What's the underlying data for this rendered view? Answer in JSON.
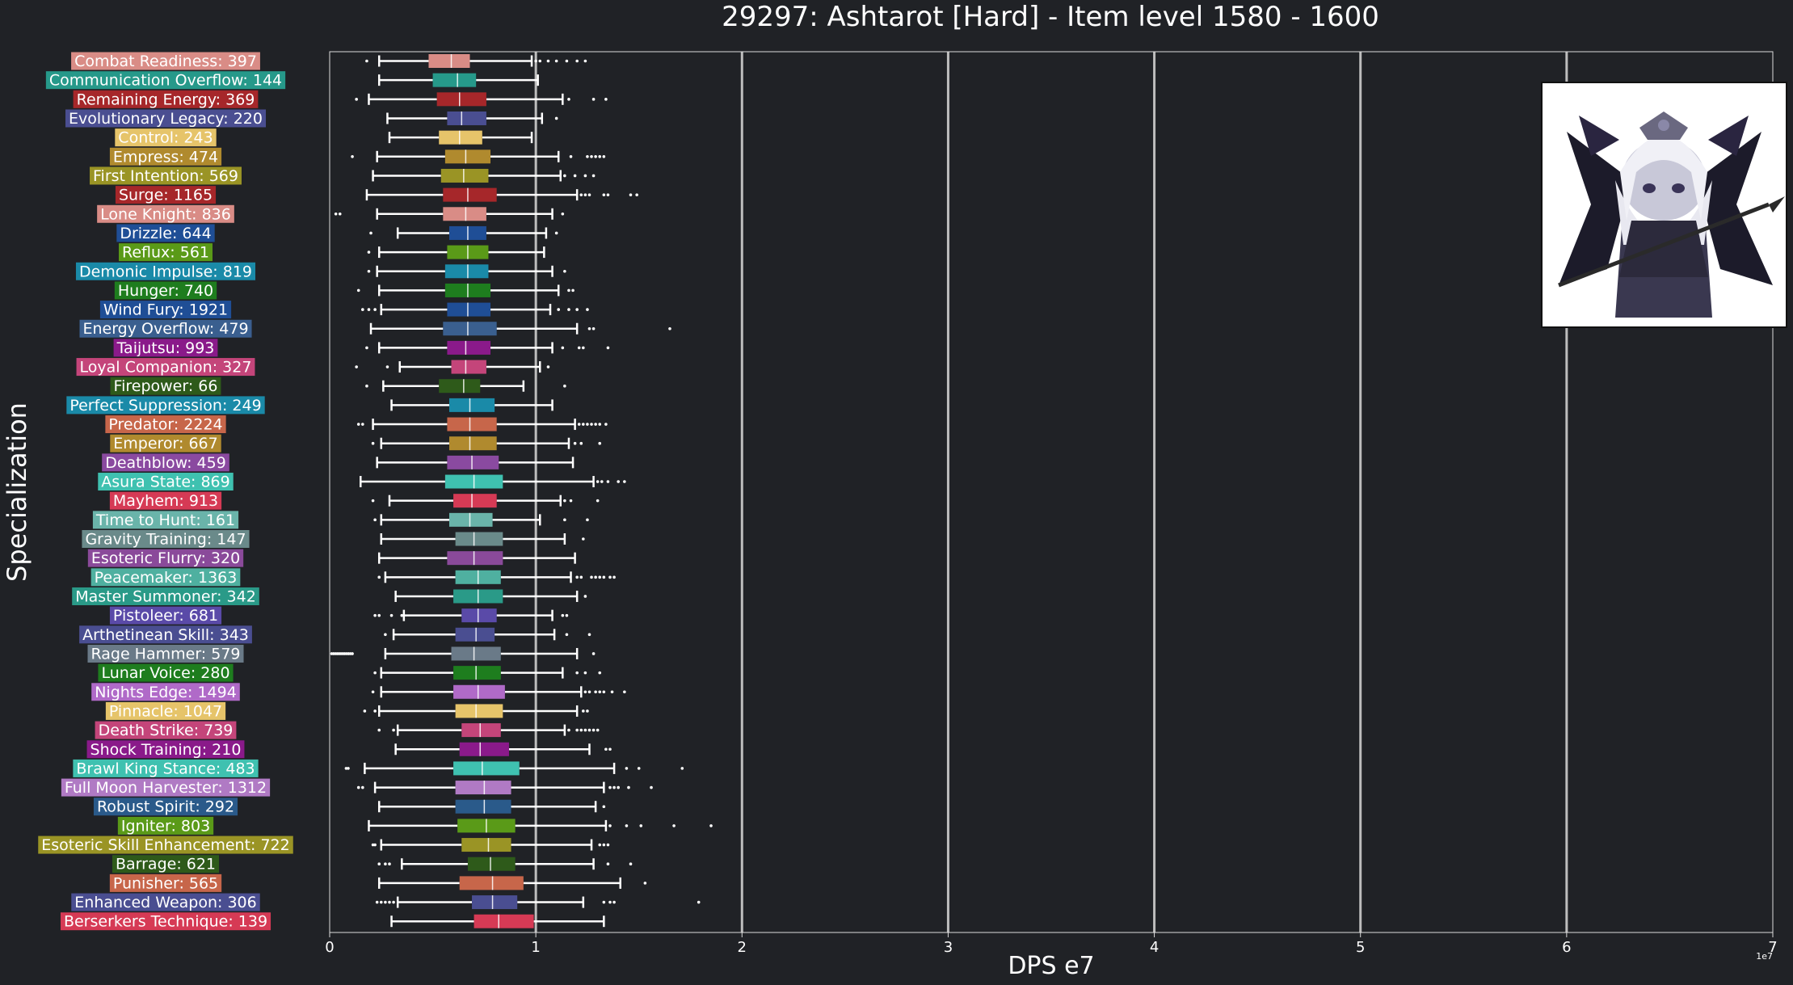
{
  "chart_data": {
    "type": "box",
    "title": "29297: Ashtarot [Hard] - Item level 1580 - 1600",
    "xlabel": "DPS e7",
    "ylabel": "Specialization",
    "x_ticks": [
      "0",
      "1",
      "2",
      "3",
      "4",
      "5",
      "6",
      "7"
    ],
    "x_tick_values": [
      0,
      1,
      2,
      3,
      4,
      5,
      6,
      7
    ],
    "x_offset_label": "1e7",
    "xlim": [
      0,
      7
    ],
    "grid": "vertical",
    "series": [
      {
        "label": "Combat Readiness: 397",
        "color": "#d98c86",
        "wl": 0.24,
        "q1": 0.48,
        "med": 0.59,
        "q3": 0.68,
        "wh": 0.98,
        "fl": [
          0.18,
          1.0,
          1.02,
          1.06,
          1.1,
          1.15,
          1.2,
          1.24
        ]
      },
      {
        "label": "Communication Overflow: 144",
        "color": "#26998a",
        "wl": 0.24,
        "q1": 0.5,
        "med": 0.62,
        "q3": 0.71,
        "wh": 1.01,
        "fl": []
      },
      {
        "label": "Remaining Energy: 369",
        "color": "#a6272a",
        "wl": 0.19,
        "q1": 0.52,
        "med": 0.63,
        "q3": 0.76,
        "wh": 1.13,
        "fl": [
          0.13,
          1.16,
          1.28,
          1.34
        ]
      },
      {
        "label": "Evolutionary Legacy: 220",
        "color": "#4a4e91",
        "wl": 0.28,
        "q1": 0.57,
        "med": 0.64,
        "q3": 0.76,
        "wh": 1.03,
        "fl": [
          1.1
        ]
      },
      {
        "label": "Control: 243",
        "color": "#e6c46a",
        "wl": 0.29,
        "q1": 0.53,
        "med": 0.63,
        "q3": 0.74,
        "wh": 0.98,
        "fl": []
      },
      {
        "label": "Empress: 474",
        "color": "#b08a2e",
        "wl": 0.23,
        "q1": 0.56,
        "med": 0.66,
        "q3": 0.78,
        "wh": 1.11,
        "fl": [
          0.11,
          1.17,
          1.25,
          1.27,
          1.29,
          1.31,
          1.33
        ]
      },
      {
        "label": "First Intention: 569",
        "color": "#9a9425",
        "wl": 0.21,
        "q1": 0.54,
        "med": 0.65,
        "q3": 0.77,
        "wh": 1.12,
        "fl": [
          1.14,
          1.19,
          1.24,
          1.28
        ]
      },
      {
        "label": "Surge: 1165",
        "color": "#a6272a",
        "wl": 0.18,
        "q1": 0.55,
        "med": 0.67,
        "q3": 0.81,
        "wh": 1.2,
        "fl": [
          1.22,
          1.24,
          1.26,
          1.33,
          1.35,
          1.46,
          1.49
        ]
      },
      {
        "label": "Lone Knight: 836",
        "color": "#d98c86",
        "wl": 0.23,
        "q1": 0.55,
        "med": 0.66,
        "q3": 0.76,
        "wh": 1.08,
        "fl": [
          0.03,
          0.05,
          1.13
        ]
      },
      {
        "label": "Drizzle: 644",
        "color": "#1f4e96",
        "wl": 0.33,
        "q1": 0.58,
        "med": 0.67,
        "q3": 0.76,
        "wh": 1.05,
        "fl": [
          0.2,
          1.1
        ]
      },
      {
        "label": "Reflux: 561",
        "color": "#5a9a18",
        "wl": 0.24,
        "q1": 0.57,
        "med": 0.67,
        "q3": 0.77,
        "wh": 1.04,
        "fl": [
          0.19
        ]
      },
      {
        "label": "Demonic Impulse: 819",
        "color": "#1a8aa8",
        "wl": 0.23,
        "q1": 0.56,
        "med": 0.67,
        "q3": 0.77,
        "wh": 1.08,
        "fl": [
          0.19,
          1.14
        ]
      },
      {
        "label": "Hunger: 740",
        "color": "#1e7d1e",
        "wl": 0.24,
        "q1": 0.56,
        "med": 0.67,
        "q3": 0.78,
        "wh": 1.11,
        "fl": [
          0.14,
          1.16,
          1.18
        ]
      },
      {
        "label": "Wind Fury: 1921",
        "color": "#1f4e96",
        "wl": 0.25,
        "q1": 0.57,
        "med": 0.67,
        "q3": 0.78,
        "wh": 1.07,
        "fl": [
          0.16,
          0.19,
          0.22,
          1.11,
          1.16,
          1.2,
          1.25
        ]
      },
      {
        "label": "Energy Overflow: 479",
        "color": "#3a5f8f",
        "wl": 0.2,
        "q1": 0.55,
        "med": 0.67,
        "q3": 0.81,
        "wh": 1.2,
        "fl": [
          1.26,
          1.28,
          1.65
        ]
      },
      {
        "label": "Taijutsu: 993",
        "color": "#8a1a8a",
        "wl": 0.24,
        "q1": 0.57,
        "med": 0.66,
        "q3": 0.78,
        "wh": 1.08,
        "fl": [
          0.18,
          1.13,
          1.21,
          1.23,
          1.35
        ]
      },
      {
        "label": "Loyal Companion: 327",
        "color": "#c4457a",
        "wl": 0.34,
        "q1": 0.59,
        "med": 0.66,
        "q3": 0.76,
        "wh": 1.02,
        "fl": [
          0.13,
          0.28,
          1.06
        ]
      },
      {
        "label": "Firepower: 66",
        "color": "#2e5a1a",
        "wl": 0.26,
        "q1": 0.53,
        "med": 0.65,
        "q3": 0.73,
        "wh": 0.94,
        "fl": [
          0.18,
          1.14
        ]
      },
      {
        "label": "Perfect Suppression: 249",
        "color": "#1a8aa8",
        "wl": 0.3,
        "q1": 0.58,
        "med": 0.68,
        "q3": 0.8,
        "wh": 1.08,
        "fl": []
      },
      {
        "label": "Predator: 2224",
        "color": "#c7664a",
        "wl": 0.21,
        "q1": 0.57,
        "med": 0.68,
        "q3": 0.81,
        "wh": 1.19,
        "fl": [
          0.14,
          0.16,
          1.21,
          1.23,
          1.25,
          1.27,
          1.29,
          1.31,
          1.34
        ]
      },
      {
        "label": "Emperor: 667",
        "color": "#b08a2e",
        "wl": 0.25,
        "q1": 0.58,
        "med": 0.68,
        "q3": 0.81,
        "wh": 1.16,
        "fl": [
          0.21,
          1.19,
          1.22,
          1.31
        ]
      },
      {
        "label": "Deathblow: 459",
        "color": "#8a4aa0",
        "wl": 0.23,
        "q1": 0.57,
        "med": 0.69,
        "q3": 0.82,
        "wh": 1.18,
        "fl": []
      },
      {
        "label": "Asura State: 869",
        "color": "#3fc1b0",
        "wl": 0.15,
        "q1": 0.56,
        "med": 0.7,
        "q3": 0.84,
        "wh": 1.28,
        "fl": [
          1.3,
          1.32,
          1.35,
          1.4,
          1.43
        ]
      },
      {
        "label": "Mayhem: 913",
        "color": "#d63a55",
        "wl": 0.29,
        "q1": 0.6,
        "med": 0.69,
        "q3": 0.81,
        "wh": 1.12,
        "fl": [
          0.21,
          1.14,
          1.17,
          1.3
        ]
      },
      {
        "label": "Time to Hunt: 161",
        "color": "#6ab4aa",
        "wl": 0.25,
        "q1": 0.58,
        "med": 0.68,
        "q3": 0.79,
        "wh": 1.02,
        "fl": [
          0.22,
          1.14,
          1.25
        ]
      },
      {
        "label": "Gravity Training: 147",
        "color": "#6a8a8a",
        "wl": 0.25,
        "q1": 0.61,
        "med": 0.7,
        "q3": 0.84,
        "wh": 1.14,
        "fl": [
          1.23
        ]
      },
      {
        "label": "Esoteric Flurry: 320",
        "color": "#8a4a9a",
        "wl": 0.24,
        "q1": 0.57,
        "med": 0.7,
        "q3": 0.84,
        "wh": 1.19,
        "fl": []
      },
      {
        "label": "Peacemaker: 1363",
        "color": "#4fb0a0",
        "wl": 0.27,
        "q1": 0.61,
        "med": 0.72,
        "q3": 0.83,
        "wh": 1.17,
        "fl": [
          0.24,
          1.2,
          1.22,
          1.27,
          1.29,
          1.31,
          1.33,
          1.36,
          1.38
        ]
      },
      {
        "label": "Master Summoner: 342",
        "color": "#2a9a88",
        "wl": 0.32,
        "q1": 0.6,
        "med": 0.72,
        "q3": 0.84,
        "wh": 1.2,
        "fl": [
          1.24
        ]
      },
      {
        "label": "Pistoleer: 681",
        "color": "#5a4aa8",
        "wl": 0.36,
        "q1": 0.64,
        "med": 0.72,
        "q3": 0.81,
        "wh": 1.08,
        "fl": [
          0.22,
          0.24,
          0.3,
          0.35,
          1.13,
          1.15
        ]
      },
      {
        "label": "Arthetinean Skill: 343",
        "color": "#4a4e91",
        "wl": 0.31,
        "q1": 0.61,
        "med": 0.71,
        "q3": 0.8,
        "wh": 1.09,
        "fl": [
          0.27,
          1.15,
          1.26
        ]
      },
      {
        "label": "Rage Hammer: 579",
        "color": "#6a7a88",
        "wl": 0.27,
        "q1": 0.59,
        "med": 0.7,
        "q3": 0.83,
        "wh": 1.2,
        "fl": [
          0.01,
          0.02,
          0.03,
          0.04,
          0.05,
          0.06,
          0.07,
          0.08,
          0.09,
          0.1,
          0.11,
          1.28
        ]
      },
      {
        "label": "Lunar Voice: 280",
        "color": "#1e7d1e",
        "wl": 0.25,
        "q1": 0.6,
        "med": 0.71,
        "q3": 0.83,
        "wh": 1.13,
        "fl": [
          0.22,
          1.2,
          1.24,
          1.31
        ]
      },
      {
        "label": "Nights Edge: 1494",
        "color": "#b06ac8",
        "wl": 0.25,
        "q1": 0.6,
        "med": 0.72,
        "q3": 0.85,
        "wh": 1.22,
        "fl": [
          0.21,
          1.24,
          1.26,
          1.29,
          1.31,
          1.33,
          1.37,
          1.43
        ]
      },
      {
        "label": "Pinnacle: 1047",
        "color": "#e6c46a",
        "wl": 0.24,
        "q1": 0.61,
        "med": 0.71,
        "q3": 0.84,
        "wh": 1.2,
        "fl": [
          0.17,
          0.22,
          1.23,
          1.25
        ]
      },
      {
        "label": "Death Strike: 739",
        "color": "#c4457a",
        "wl": 0.33,
        "q1": 0.64,
        "med": 0.73,
        "q3": 0.83,
        "wh": 1.14,
        "fl": [
          0.24,
          0.31,
          1.16,
          1.2,
          1.22,
          1.24,
          1.26,
          1.28,
          1.3
        ]
      },
      {
        "label": "Shock Training: 210",
        "color": "#8a1a8a",
        "wl": 0.32,
        "q1": 0.63,
        "med": 0.73,
        "q3": 0.87,
        "wh": 1.26,
        "fl": [
          1.34,
          1.36
        ]
      },
      {
        "label": "Brawl King Stance: 483",
        "color": "#3fc1b0",
        "wl": 0.17,
        "q1": 0.6,
        "med": 0.74,
        "q3": 0.92,
        "wh": 1.38,
        "fl": [
          0.08,
          0.09,
          1.44,
          1.5,
          1.71
        ]
      },
      {
        "label": "Full Moon Harvester: 1312",
        "color": "#b07ac4",
        "wl": 0.22,
        "q1": 0.61,
        "med": 0.75,
        "q3": 0.88,
        "wh": 1.33,
        "fl": [
          0.14,
          0.16,
          1.36,
          1.38,
          1.4,
          1.45,
          1.56
        ]
      },
      {
        "label": "Robust Spirit: 292",
        "color": "#2a5a8a",
        "wl": 0.24,
        "q1": 0.61,
        "med": 0.75,
        "q3": 0.88,
        "wh": 1.29,
        "fl": [
          1.33
        ]
      },
      {
        "label": "Igniter: 803",
        "color": "#5a9a18",
        "wl": 0.19,
        "q1": 0.62,
        "med": 0.76,
        "q3": 0.9,
        "wh": 1.34,
        "fl": [
          1.36,
          1.44,
          1.51,
          1.67,
          1.85
        ]
      },
      {
        "label": "Esoteric Skill Enhancement: 722",
        "color": "#9a9425",
        "wl": 0.25,
        "q1": 0.64,
        "med": 0.77,
        "q3": 0.88,
        "wh": 1.27,
        "fl": [
          0.21,
          0.22,
          1.31,
          1.33,
          1.35
        ]
      },
      {
        "label": "Barrage: 621",
        "color": "#2e5a1a",
        "wl": 0.35,
        "q1": 0.67,
        "med": 0.78,
        "q3": 0.9,
        "wh": 1.28,
        "fl": [
          0.24,
          0.27,
          0.29,
          1.35,
          1.46
        ]
      },
      {
        "label": "Punisher: 565",
        "color": "#c7664a",
        "wl": 0.24,
        "q1": 0.63,
        "med": 0.79,
        "q3": 0.94,
        "wh": 1.41,
        "fl": [
          1.53
        ]
      },
      {
        "label": "Enhanced Weapon: 306",
        "color": "#4a4e91",
        "wl": 0.33,
        "q1": 0.69,
        "med": 0.79,
        "q3": 0.91,
        "wh": 1.23,
        "fl": [
          0.23,
          0.25,
          0.27,
          0.29,
          0.31,
          1.33,
          1.36,
          1.38,
          1.79
        ]
      },
      {
        "label": "Berserkers Technique: 139",
        "color": "#d63a55",
        "wl": 0.3,
        "q1": 0.7,
        "med": 0.82,
        "q3": 0.99,
        "wh": 1.33,
        "fl": []
      }
    ]
  }
}
